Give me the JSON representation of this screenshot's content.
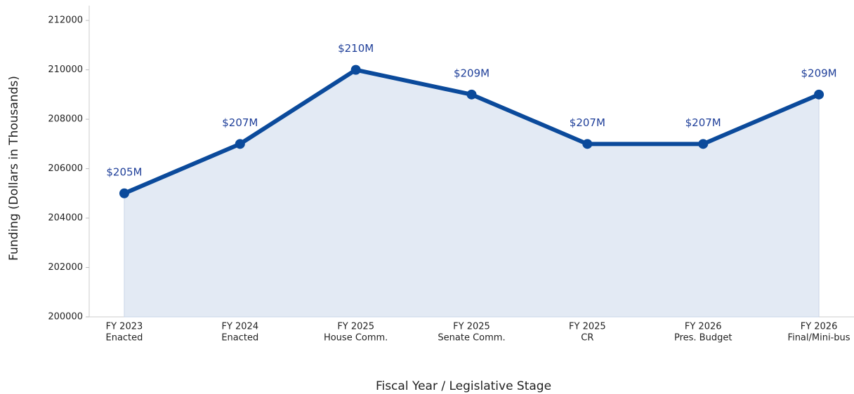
{
  "chart_data": {
    "type": "line",
    "categories": [
      [
        "FY 2023",
        "Enacted"
      ],
      [
        "FY 2024",
        "Enacted"
      ],
      [
        "FY 2025",
        "House Comm."
      ],
      [
        "FY 2025",
        "Senate Comm."
      ],
      [
        "FY 2025",
        "CR"
      ],
      [
        "FY 2026",
        "Pres. Budget"
      ],
      [
        "FY 2026",
        "Final/Mini-bus"
      ]
    ],
    "series": [
      {
        "name": "Funding",
        "color": "#0b4a9b",
        "fill": "#e3eaf4",
        "values": [
          205000,
          207000,
          210000,
          209000,
          207000,
          207000,
          209000
        ],
        "value_labels": [
          "$205M",
          "$207M",
          "$210M",
          "$209M",
          "$207M",
          "$207M",
          "$209M"
        ]
      }
    ],
    "xlabel": "Fiscal Year / Legislative Stage",
    "ylabel": "Funding (Dollars in Thousands)",
    "ylim": [
      200000,
      212600
    ],
    "yticks": [
      200000,
      202000,
      204000,
      206000,
      208000,
      210000,
      212000
    ],
    "grid": false
  }
}
